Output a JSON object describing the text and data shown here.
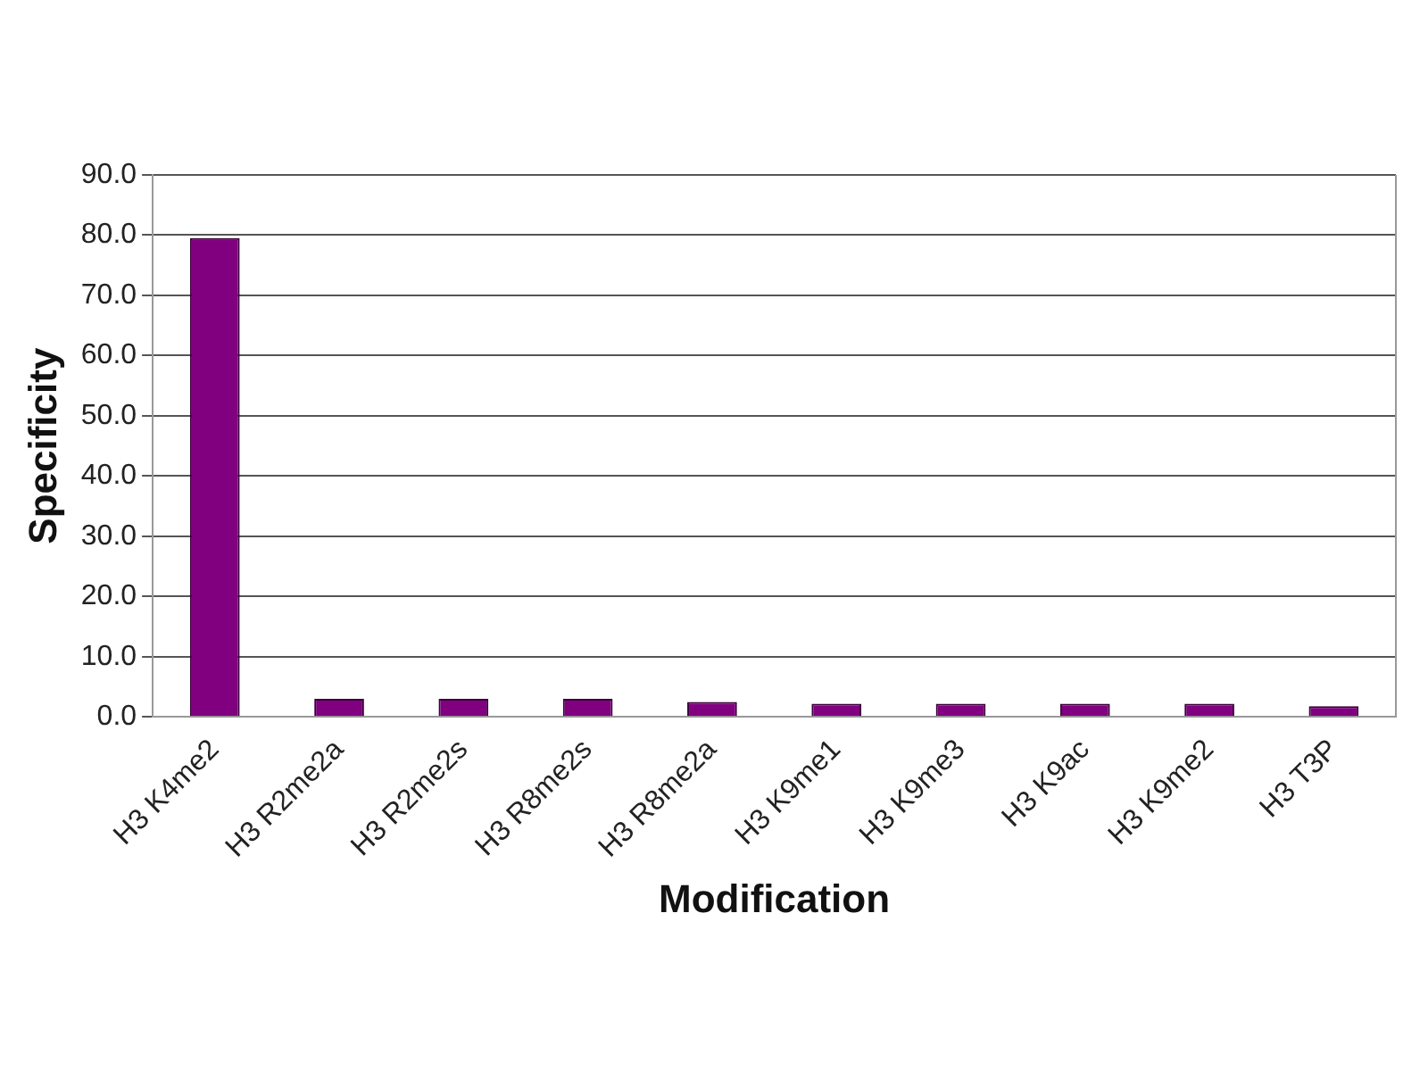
{
  "chart_data": {
    "type": "bar",
    "xlabel": "Modification",
    "ylabel": "Specificity",
    "categories": [
      "H3 K4me2",
      "H3 R2me2a",
      "H3 R2me2s",
      "H3 R8me2s",
      "H3 R8me2a",
      "H3 K9me1",
      "H3 K9me3",
      "H3 K9ac",
      "H3 K9me2",
      "H3 T3P"
    ],
    "values": [
      79.5,
      3.0,
      3.0,
      3.0,
      2.5,
      2.2,
      2.2,
      2.2,
      2.2,
      1.8
    ],
    "color": "#800080",
    "ylim": [
      0,
      90
    ],
    "yticks": [
      {
        "value": 0,
        "label": "0.0"
      },
      {
        "value": 10,
        "label": "10.0"
      },
      {
        "value": 20,
        "label": "20.0"
      },
      {
        "value": 30,
        "label": "30.0"
      },
      {
        "value": 40,
        "label": "40.0"
      },
      {
        "value": 50,
        "label": "50.0"
      },
      {
        "value": 60,
        "label": "60.0"
      },
      {
        "value": 70,
        "label": "70.0"
      },
      {
        "value": 80,
        "label": "80.0"
      },
      {
        "value": 90,
        "label": "90.0"
      }
    ],
    "grid": "y",
    "legend": false
  }
}
